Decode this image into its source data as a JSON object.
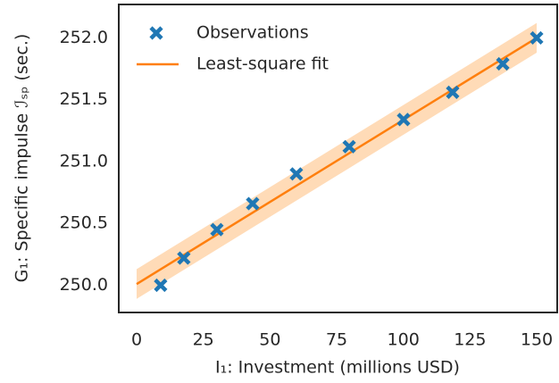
{
  "chart_data": {
    "type": "scatter",
    "xlabel": "I₁: Investment (millions USD)",
    "ylabel": "G₁: Specific impulse ℐₛₚ (sec.)",
    "xlim": [
      -6.7,
      157.7
    ],
    "ylim": [
      249.78,
      252.27
    ],
    "xticks": [
      0,
      25,
      50,
      75,
      100,
      125,
      150
    ],
    "yticks": [
      {
        "value": 250,
        "label": "250.0"
      },
      250.5,
      {
        "value": 251,
        "label": "251.0"
      },
      251.5,
      {
        "value": 252,
        "label": "252.0"
      }
    ],
    "legend": "upper left",
    "series": [
      {
        "name": "Observations",
        "type": "scatter",
        "color": "#1f77b4",
        "x": [
          9,
          17.7,
          30.1,
          43.5,
          59.9,
          79.7,
          100.1,
          118.5,
          137.3,
          150
        ],
        "values": [
          250.0,
          250.22,
          250.45,
          250.66,
          250.9,
          251.12,
          251.34,
          251.56,
          251.79,
          252.0
        ]
      },
      {
        "name": "Least-square fit",
        "type": "line",
        "color": "#ff7f0e",
        "x": [
          0,
          150
        ],
        "values": [
          250.01,
          252.0
        ],
        "band_lower": [
          249.89,
          251.88
        ],
        "band_upper": [
          250.13,
          252.12
        ],
        "band_color": "#ffcc99"
      }
    ]
  }
}
